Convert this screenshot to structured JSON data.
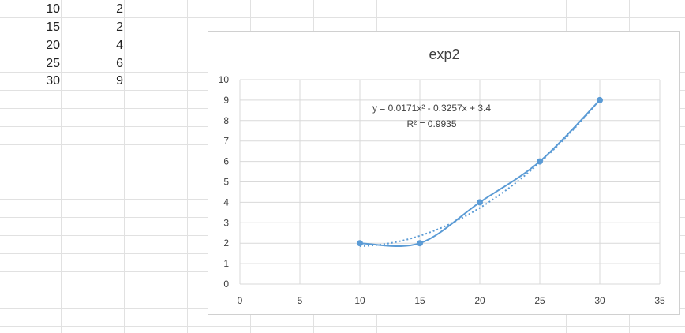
{
  "sheet": {
    "rows": [
      {
        "a": "10",
        "b": "2"
      },
      {
        "a": "15",
        "b": "2"
      },
      {
        "a": "20",
        "b": "4"
      },
      {
        "a": "25",
        "b": "6"
      },
      {
        "a": "30",
        "b": "9"
      }
    ]
  },
  "colors": {
    "series": "#5b9bd5",
    "grid": "#d9d9d9",
    "sheet_grid": "#e1e1e1"
  },
  "chart_data": {
    "type": "scatter",
    "title": "exp2",
    "x": [
      10,
      15,
      20,
      25,
      30
    ],
    "y": [
      2,
      2,
      4,
      6,
      9
    ],
    "xlim": [
      0,
      35
    ],
    "ylim": [
      0,
      10
    ],
    "x_ticks": [
      "0",
      "5",
      "10",
      "15",
      "20",
      "25",
      "30",
      "35"
    ],
    "y_ticks": [
      "0",
      "1",
      "2",
      "3",
      "4",
      "5",
      "6",
      "7",
      "8",
      "9",
      "10"
    ],
    "grid": true,
    "smooth_line": true,
    "trendline": {
      "type": "polynomial",
      "coefficients": [
        0.0171,
        -0.3257,
        3.4
      ],
      "equation": "y = 0.0171x² - 0.3257x + 3.4",
      "r_squared": "R² = 0.9935"
    }
  }
}
